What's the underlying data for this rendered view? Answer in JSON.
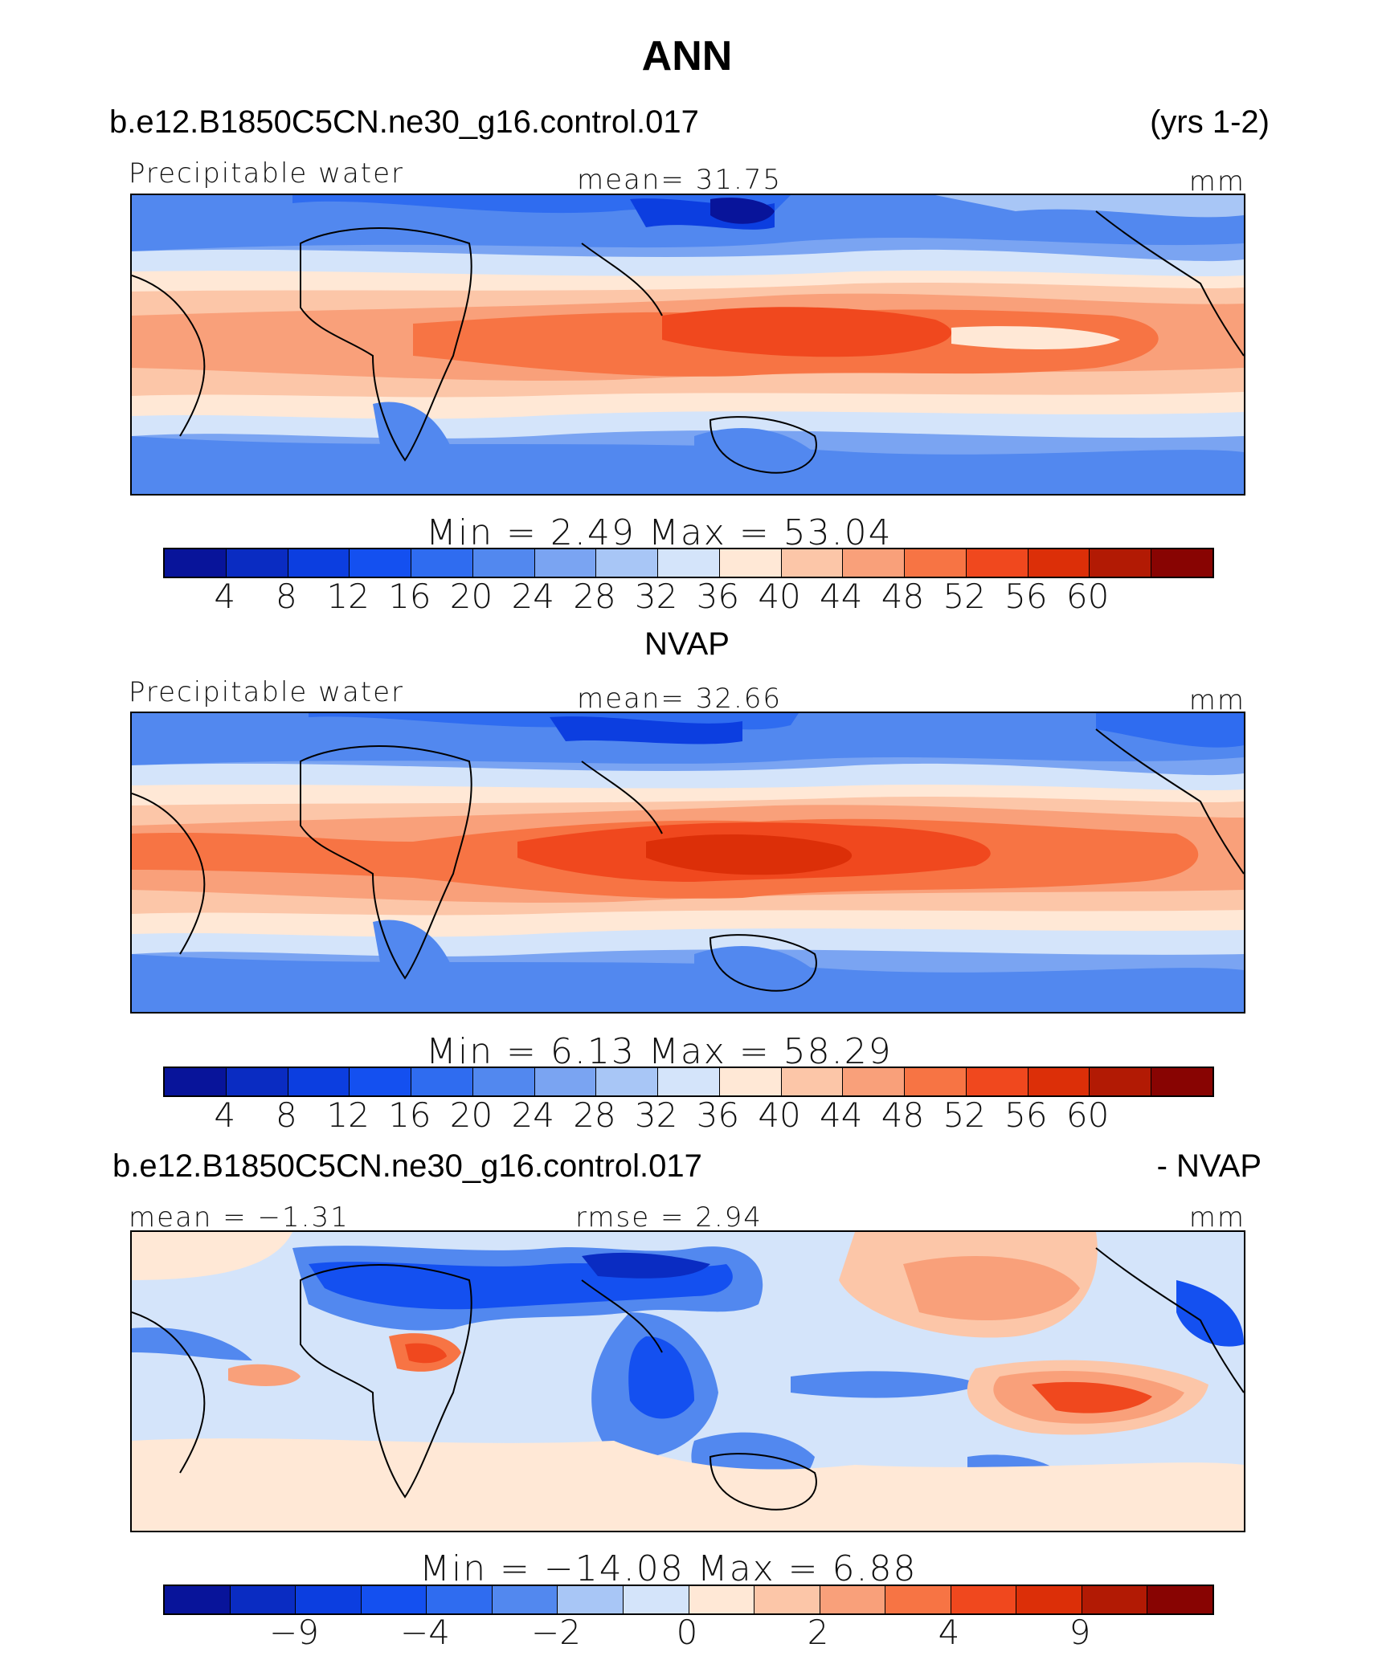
{
  "figure": {
    "title": "ANN",
    "case_name": "b.e12.B1850C5CN.ne30_g16.control.017",
    "years": "(yrs 1-2)",
    "diff_case_name": "b.e12.B1850C5CN.ne30_g16.control.017",
    "diff_suffix": "- NVAP"
  },
  "colors": {
    "abs_palette": [
      "#08149a",
      "#0a2cc2",
      "#0c3ee0",
      "#1450f0",
      "#2f6cf0",
      "#5288ef",
      "#7aa4f2",
      "#a8c6f6",
      "#d4e4fa",
      "#ffe8d6",
      "#fcc6a8",
      "#f9a07a",
      "#f77444",
      "#f0481e",
      "#dc2f08",
      "#b21a04",
      "#880402"
    ],
    "diff_palette": [
      "#08149a",
      "#0a2cc2",
      "#0c3ee0",
      "#1450f0",
      "#2f6cf0",
      "#5288ef",
      "#a8c6f6",
      "#d4e4fa",
      "#ffe8d6",
      "#fcc6a8",
      "#f9a07a",
      "#f77444",
      "#f0481e",
      "#dc2f08",
      "#b21a04",
      "#880402"
    ]
  },
  "chart_data": [
    {
      "type": "heatmap",
      "name": "model",
      "left_label": "Precipitable water",
      "center_label": "mean=   31.75",
      "units": "mm",
      "min_max": "Min  =     2.49  Max  =    53.04",
      "mean": 31.75,
      "min": 2.49,
      "max": 53.04,
      "colorbar_ticks": [
        "4",
        "8",
        "12",
        "16",
        "20",
        "24",
        "28",
        "32",
        "36",
        "40",
        "44",
        "48",
        "52",
        "56",
        "60"
      ]
    },
    {
      "type": "heatmap",
      "name": "obs",
      "subtitle": "NVAP",
      "left_label": "Precipitable water",
      "center_label": "mean=   32.66",
      "units": "mm",
      "min_max": "Min  =     6.13  Max  =    58.29",
      "mean": 32.66,
      "min": 6.13,
      "max": 58.29,
      "colorbar_ticks": [
        "4",
        "8",
        "12",
        "16",
        "20",
        "24",
        "28",
        "32",
        "36",
        "40",
        "44",
        "48",
        "52",
        "56",
        "60"
      ]
    },
    {
      "type": "heatmap",
      "name": "difference",
      "left_label": "mean =   −1.31",
      "center_label": "rmse =     2.94",
      "units": "mm",
      "min_max": "Min  = −14.08  Max  =     6.88",
      "mean": -1.31,
      "rmse": 2.94,
      "min": -14.08,
      "max": 6.88,
      "colorbar_ticks": [
        "−9",
        "−4",
        "−2",
        "0",
        "2",
        "4",
        "9"
      ]
    }
  ]
}
